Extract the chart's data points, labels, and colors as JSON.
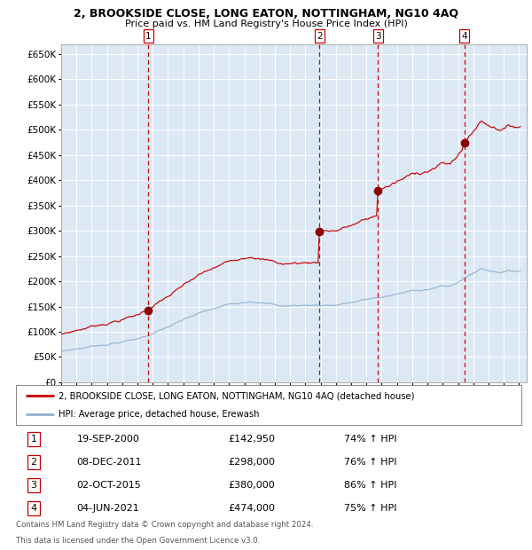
{
  "title": "2, BROOKSIDE CLOSE, LONG EATON, NOTTINGHAM, NG10 4AQ",
  "subtitle": "Price paid vs. HM Land Registry's House Price Index (HPI)",
  "background_color": "#dce9f5",
  "grid_color": "#ffffff",
  "ylim": [
    0,
    670000
  ],
  "yticks": [
    0,
    50000,
    100000,
    150000,
    200000,
    250000,
    300000,
    350000,
    400000,
    450000,
    500000,
    550000,
    600000,
    650000
  ],
  "xlim_start": 1995.0,
  "xlim_end": 2025.5,
  "sale_color": "#cc0000",
  "hpi_color": "#88aacc",
  "sale_marker_color": "#880000",
  "vline_color": "#cc0000",
  "legend_label_sale": "2, BROOKSIDE CLOSE, LONG EATON, NOTTINGHAM, NG10 4AQ (detached house)",
  "legend_label_hpi": "HPI: Average price, detached house, Erewash",
  "transactions": [
    {
      "num": 1,
      "date": "19-SEP-2000",
      "price": 142950,
      "hpi_pct": "74% ↑ HPI",
      "year": 2000.72
    },
    {
      "num": 2,
      "date": "08-DEC-2011",
      "price": 298000,
      "hpi_pct": "76% ↑ HPI",
      "year": 2011.93
    },
    {
      "num": 3,
      "date": "02-OCT-2015",
      "price": 380000,
      "hpi_pct": "86% ↑ HPI",
      "year": 2015.75
    },
    {
      "num": 4,
      "date": "04-JUN-2021",
      "price": 474000,
      "hpi_pct": "75% ↑ HPI",
      "year": 2021.42
    }
  ],
  "footer_line1": "Contains HM Land Registry data © Crown copyright and database right 2024.",
  "footer_line2": "This data is licensed under the Open Government Licence v3.0."
}
